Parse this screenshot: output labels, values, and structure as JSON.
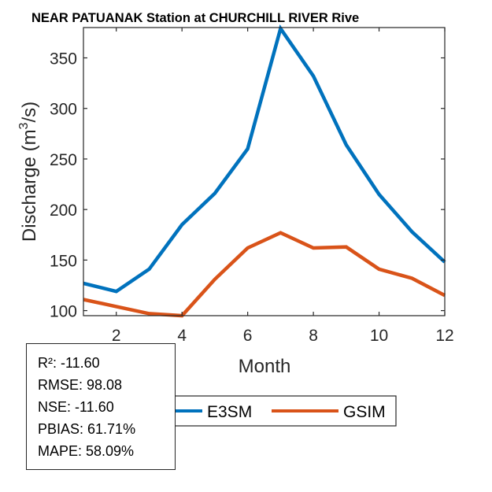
{
  "chart_data": {
    "type": "line",
    "title": "NEAR PATUANAK  Station at  CHURCHILL RIVER  Rive",
    "xlabel": "Month",
    "ylabel_main": "Discharge (m",
    "ylabel_sup": "3",
    "ylabel_tail": "/s)",
    "xlim": [
      1,
      12
    ],
    "ylim": [
      95,
      380
    ],
    "xticks": [
      2,
      4,
      6,
      8,
      10,
      12
    ],
    "yticks": [
      100,
      150,
      200,
      250,
      300,
      350
    ],
    "grid": false,
    "x": [
      1,
      2,
      3,
      4,
      5,
      6,
      7,
      8,
      9,
      10,
      11,
      12
    ],
    "series": [
      {
        "name": "E3SM",
        "color": "#0072BD",
        "values": [
          127,
          119,
          141,
          185,
          216,
          260,
          379,
          332,
          264,
          215,
          178,
          148
        ]
      },
      {
        "name": "GSIM",
        "color": "#D95319",
        "values": [
          111,
          104,
          97,
          95,
          131,
          162,
          177,
          162,
          163,
          141,
          132,
          115
        ]
      }
    ],
    "legend": {
      "placement": "bottom-center",
      "orientation": "horizontal",
      "entries": [
        "E3SM",
        "GSIM"
      ]
    }
  },
  "stats": [
    "R²: -11.60",
    "RMSE: 98.08",
    "NSE: -11.60",
    "PBIAS: 61.71%",
    "MAPE: 58.09%"
  ]
}
